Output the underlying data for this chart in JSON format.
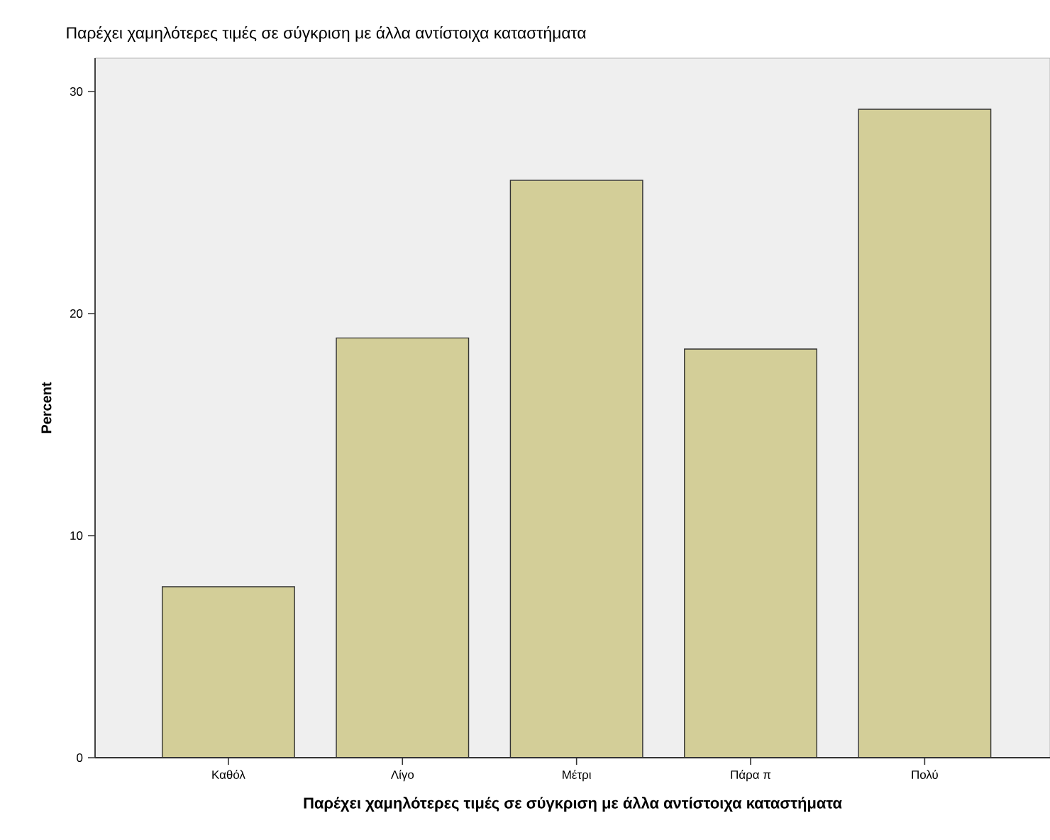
{
  "chart_data": {
    "type": "bar",
    "title": "Παρέχει χαμηλότερες τιμές σε σύγκριση με άλλα αντίστοιχα καταστήματα",
    "xlabel": "Παρέχει χαμηλότερες τιμές σε σύγκριση με άλλα αντίστοιχα καταστήματα",
    "ylabel": "Percent",
    "categories": [
      "Καθόλ",
      "Λίγο",
      "Μέτρι",
      "Πάρα π",
      "Πολύ"
    ],
    "values": [
      7.7,
      18.9,
      26.0,
      18.4,
      29.2
    ],
    "color": "#d3ce98",
    "ylim": [
      0,
      31.5
    ],
    "yticks": [
      0,
      10,
      20,
      30
    ]
  }
}
